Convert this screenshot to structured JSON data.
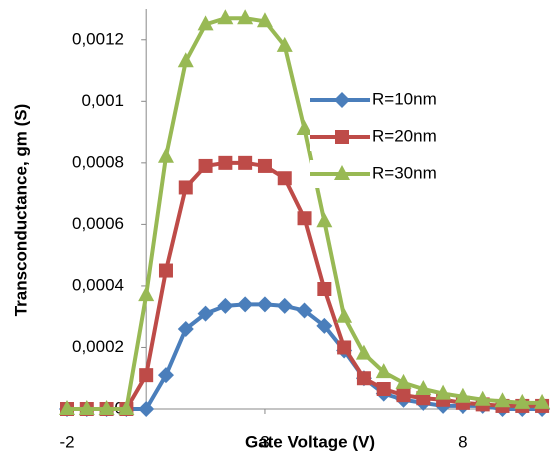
{
  "chart_data": {
    "type": "line",
    "x_label": "Gate Voltage (V)",
    "y_label": "Transconductance, gm (S)",
    "x": [
      -2,
      -1.5,
      -1,
      -0.5,
      0,
      0.5,
      1,
      1.5,
      2,
      2.5,
      3,
      3.5,
      4,
      4.5,
      5,
      5.5,
      6,
      6.5,
      7,
      7.5,
      8,
      8.5,
      9,
      9.5,
      10
    ],
    "series": [
      {
        "name": "R=10nm",
        "color": "#4a7ebb",
        "marker": "diamond",
        "values": [
          0,
          0,
          0,
          0,
          0,
          0.00011,
          0.00026,
          0.00031,
          0.000335,
          0.00034,
          0.00034,
          0.000335,
          0.00032,
          0.00027,
          0.00019,
          0.0001,
          5e-05,
          3e-05,
          2e-05,
          1e-05,
          1e-05,
          1e-05,
          0,
          0,
          0
        ]
      },
      {
        "name": "R=20nm",
        "color": "#be4b48",
        "marker": "square",
        "values": [
          0,
          0,
          0,
          0,
          0.00011,
          0.00045,
          0.00072,
          0.00079,
          0.0008,
          0.0008,
          0.00079,
          0.00075,
          0.00062,
          0.00039,
          0.0002,
          0.0001,
          6.5e-05,
          4.5e-05,
          3.5e-05,
          3e-05,
          2e-05,
          1.5e-05,
          1e-05,
          1e-05,
          1e-05
        ]
      },
      {
        "name": "R=30nm",
        "color": "#98b954",
        "marker": "triangle",
        "values": [
          0,
          0,
          0,
          0,
          0.00037,
          0.00082,
          0.00113,
          0.00125,
          0.00127,
          0.00127,
          0.00126,
          0.00118,
          0.00091,
          0.00061,
          0.0003,
          0.00018,
          0.00012,
          8.5e-05,
          6.5e-05,
          5e-05,
          4e-05,
          3e-05,
          2.5e-05,
          2e-05,
          2e-05
        ]
      }
    ],
    "xlim": [
      -2,
      10.2
    ],
    "xticks": [
      -2,
      3,
      8
    ],
    "ylim": [
      0,
      0.0013
    ],
    "yticks": [
      0,
      {
        "value": 0.0002,
        "label": "0,0002"
      },
      {
        "value": 0.0004,
        "label": "0,0004"
      },
      {
        "value": 0.0006,
        "label": "0,0006"
      },
      {
        "value": 0.0008,
        "label": "0,0008"
      },
      {
        "value": 0.001,
        "label": "0,001"
      },
      {
        "value": 0.0012,
        "label": "0,0012"
      }
    ],
    "legend": "right"
  }
}
